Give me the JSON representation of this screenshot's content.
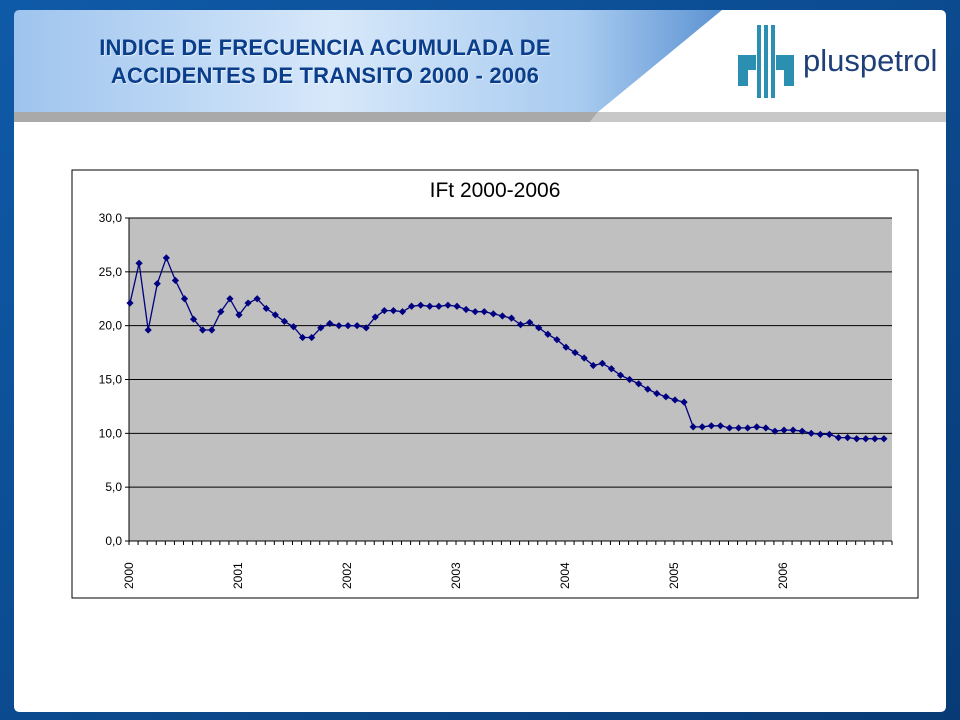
{
  "slide": {
    "title_line1": "INDICE DE FRECUENCIA ACUMULADA DE",
    "title_line2": "ACCIDENTES DE TRANSITO 2000 - 2006",
    "brand": "pluspetrol",
    "colors": {
      "frame_blue": "#0b4a8f",
      "title_text": "#0b3e8a",
      "plot_area": "#c0c0c0",
      "series": "#000080",
      "logo_teal": "#2a8fb0"
    }
  },
  "chart_data": {
    "type": "line",
    "title": "IFt  2000-2006",
    "xlabel": "",
    "ylabel": "",
    "ylim": [
      0,
      30
    ],
    "yticks": [
      "30,0",
      "25,0",
      "20,0",
      "15,0",
      "10,0",
      "5,0",
      "0,0"
    ],
    "year_labels": [
      "2000",
      "2001",
      "2002",
      "2003",
      "2004",
      "2005",
      "2006"
    ],
    "grid": true,
    "legend": "none",
    "marker": "diamond",
    "series": [
      {
        "values": [
          22.1,
          25.8,
          19.6,
          23.9,
          26.3,
          24.2,
          22.5,
          20.6,
          19.6,
          19.6,
          21.3,
          22.5,
          21.0,
          22.1,
          22.5,
          21.6,
          21.0,
          20.4,
          19.9,
          18.9,
          18.9,
          19.8,
          20.2,
          20.0,
          20.0,
          20.0,
          19.8,
          20.8,
          21.4,
          21.4,
          21.3,
          21.8,
          21.9,
          21.8,
          21.8,
          21.9,
          21.8,
          21.5,
          21.3,
          21.3,
          21.1,
          20.9,
          20.7,
          20.1,
          20.3,
          19.8,
          19.2,
          18.7,
          18.0,
          17.5,
          17.0,
          16.3,
          16.5,
          16.0,
          15.4,
          15.0,
          14.6,
          14.1,
          13.7,
          13.4,
          13.1,
          12.9,
          10.6,
          10.6,
          10.7,
          10.7,
          10.5,
          10.5,
          10.5,
          10.6,
          10.5,
          10.2,
          10.3,
          10.3,
          10.2,
          10.0,
          9.9,
          9.9,
          9.6,
          9.6,
          9.5,
          9.5,
          9.5,
          9.5
        ]
      }
    ]
  }
}
